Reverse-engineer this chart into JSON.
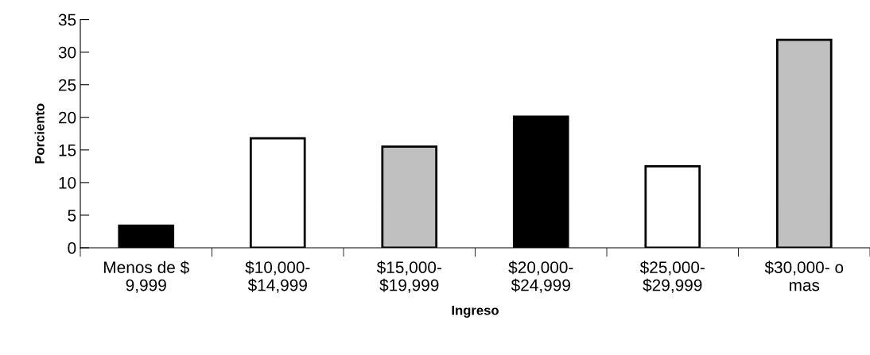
{
  "chart_data": {
    "type": "bar",
    "xlabel": "Ingreso",
    "ylabel": "Porciento",
    "categories": [
      "Menos de $\n9,999",
      "$10,000-\n$14,999",
      "$15,000-\n$19,999",
      "$20,000-\n$24,999",
      "$25,000-\n$29,999",
      "$30,000- o\nmas"
    ],
    "values": [
      3.4,
      16.8,
      15.5,
      20.1,
      12.5,
      31.9
    ],
    "colors": [
      "#000000",
      "#ffffff",
      "#c0c0c0",
      "#000000",
      "#ffffff",
      "#c0c0c0"
    ],
    "ylim": [
      0,
      35
    ],
    "yticks": [
      0,
      5,
      10,
      15,
      20,
      25,
      30,
      35
    ],
    "grid": false,
    "legend": false
  }
}
